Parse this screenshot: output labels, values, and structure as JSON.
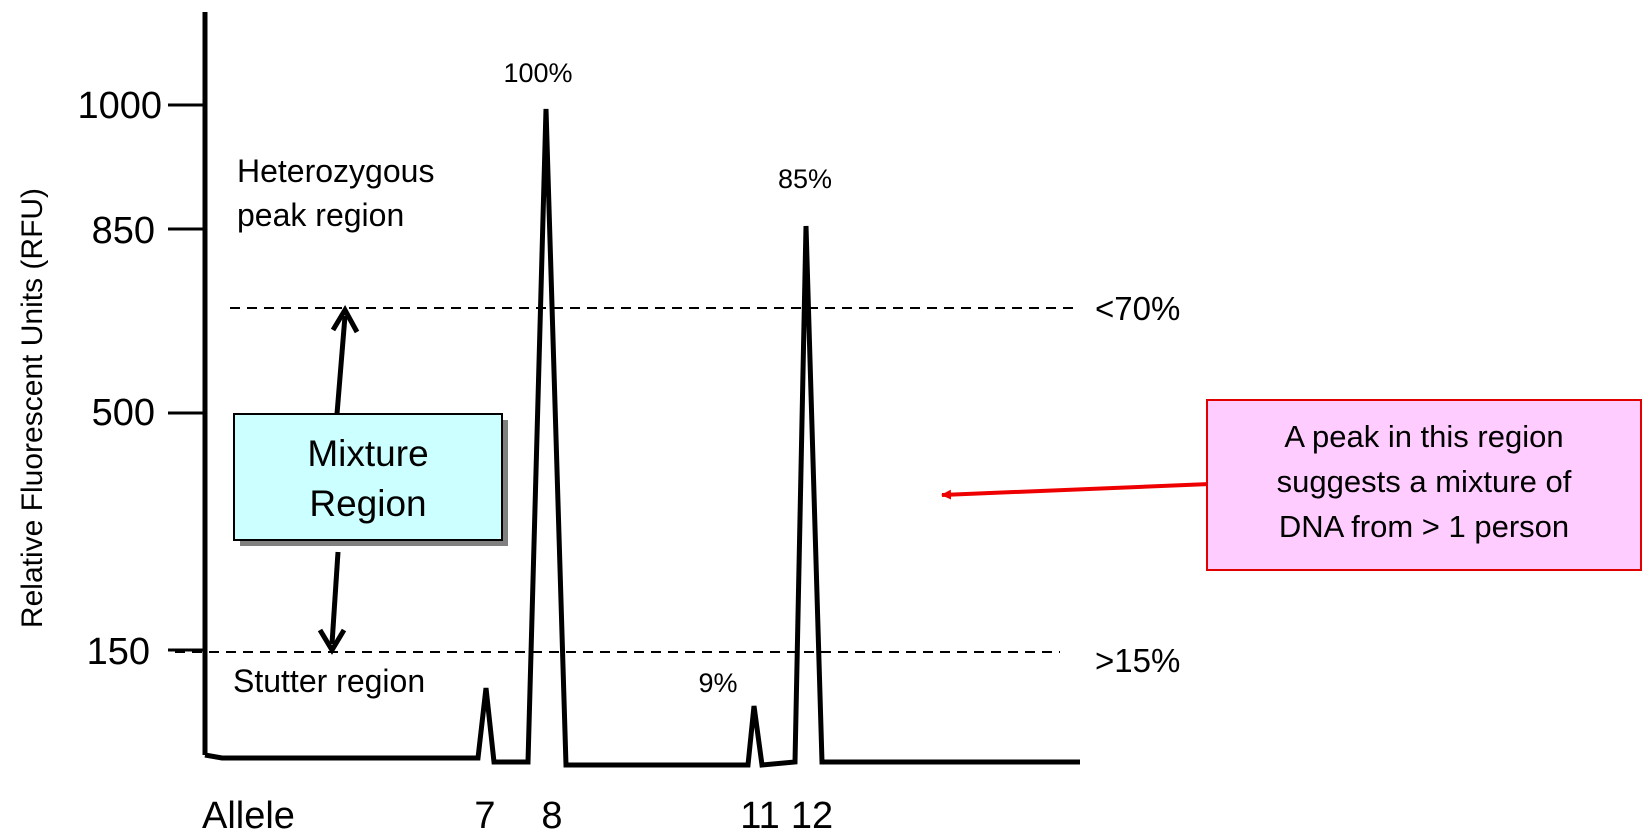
{
  "y_axis": {
    "label": "Relative Fluorescent Units (RFU)",
    "ticks": [
      "1000",
      "850",
      "500",
      "150"
    ]
  },
  "x_axis": {
    "label": "Allele",
    "alleles": [
      "7",
      "8",
      "11",
      "12"
    ]
  },
  "peaks": [
    {
      "allele": "8",
      "percent_label": "100%"
    },
    {
      "allele": "12",
      "percent_label": "85%"
    },
    {
      "allele": "11",
      "percent_label": "9%"
    }
  ],
  "regions": {
    "heterozygous_line1": "Heterozygous",
    "heterozygous_line2": "peak region",
    "stutter": "Stutter region",
    "mixture_line1": "Mixture",
    "mixture_line2": "Region"
  },
  "thresholds": {
    "upper": "<70%",
    "lower": ">15%"
  },
  "callout": {
    "line1": "A peak in this region",
    "line2": "suggests a mixture of",
    "line3": "DNA from > 1 person"
  },
  "colors": {
    "mixture_box_fill": "#ccffff",
    "callout_fill": "#ffccff",
    "callout_border": "#e00000",
    "arrow_red": "#ee0000"
  }
}
